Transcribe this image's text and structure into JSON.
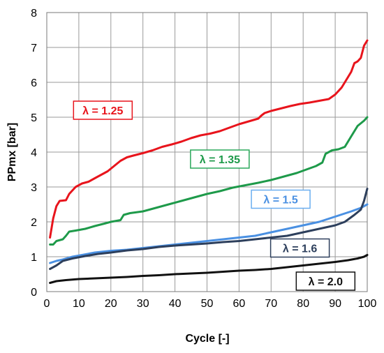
{
  "chart_data": {
    "type": "line",
    "title": "",
    "xlabel": "Cycle [-]",
    "ylabel": "PPmx [bar]",
    "xlim": [
      0,
      100
    ],
    "ylim": [
      0,
      8
    ],
    "x_ticks": [
      0,
      10,
      20,
      30,
      40,
      50,
      60,
      70,
      80,
      90,
      100
    ],
    "y_ticks": [
      0,
      1,
      2,
      3,
      4,
      5,
      6,
      7,
      8
    ],
    "grid": true,
    "legend": "inline boxed labels near each curve",
    "series": [
      {
        "name": "λ = 1.25",
        "color": "#e8141c",
        "label_border": "#e8141c",
        "points": [
          [
            1,
            1.55
          ],
          [
            2,
            2.1
          ],
          [
            3,
            2.45
          ],
          [
            4,
            2.6
          ],
          [
            6,
            2.62
          ],
          [
            7,
            2.8
          ],
          [
            9,
            3.0
          ],
          [
            10,
            3.05
          ],
          [
            11,
            3.1
          ],
          [
            13,
            3.15
          ],
          [
            15,
            3.25
          ],
          [
            17,
            3.35
          ],
          [
            19,
            3.45
          ],
          [
            21,
            3.6
          ],
          [
            23,
            3.75
          ],
          [
            25,
            3.85
          ],
          [
            27,
            3.9
          ],
          [
            30,
            3.97
          ],
          [
            33,
            4.05
          ],
          [
            36,
            4.15
          ],
          [
            39,
            4.22
          ],
          [
            42,
            4.3
          ],
          [
            45,
            4.4
          ],
          [
            48,
            4.48
          ],
          [
            51,
            4.53
          ],
          [
            54,
            4.6
          ],
          [
            57,
            4.7
          ],
          [
            60,
            4.8
          ],
          [
            63,
            4.88
          ],
          [
            66,
            4.96
          ],
          [
            67,
            5.05
          ],
          [
            68,
            5.12
          ],
          [
            70,
            5.18
          ],
          [
            73,
            5.25
          ],
          [
            76,
            5.32
          ],
          [
            79,
            5.38
          ],
          [
            82,
            5.42
          ],
          [
            85,
            5.47
          ],
          [
            88,
            5.52
          ],
          [
            90,
            5.65
          ],
          [
            92,
            5.85
          ],
          [
            93,
            6.0
          ],
          [
            95,
            6.3
          ],
          [
            96,
            6.55
          ],
          [
            97,
            6.6
          ],
          [
            98,
            6.7
          ],
          [
            99,
            7.05
          ],
          [
            100,
            7.2
          ]
        ]
      },
      {
        "name": "λ = 1.35",
        "color": "#1e9a4a",
        "label_border": "#2aa85a",
        "points": [
          [
            1,
            1.35
          ],
          [
            2,
            1.35
          ],
          [
            3,
            1.45
          ],
          [
            5,
            1.5
          ],
          [
            6,
            1.6
          ],
          [
            7,
            1.72
          ],
          [
            9,
            1.75
          ],
          [
            12,
            1.8
          ],
          [
            15,
            1.88
          ],
          [
            18,
            1.95
          ],
          [
            20,
            2.0
          ],
          [
            23,
            2.05
          ],
          [
            24,
            2.2
          ],
          [
            26,
            2.25
          ],
          [
            30,
            2.3
          ],
          [
            34,
            2.4
          ],
          [
            38,
            2.5
          ],
          [
            42,
            2.6
          ],
          [
            46,
            2.7
          ],
          [
            50,
            2.8
          ],
          [
            54,
            2.88
          ],
          [
            58,
            2.98
          ],
          [
            62,
            3.05
          ],
          [
            66,
            3.12
          ],
          [
            70,
            3.2
          ],
          [
            74,
            3.3
          ],
          [
            78,
            3.4
          ],
          [
            81,
            3.5
          ],
          [
            84,
            3.6
          ],
          [
            86,
            3.7
          ],
          [
            87,
            3.95
          ],
          [
            89,
            4.05
          ],
          [
            91,
            4.08
          ],
          [
            93,
            4.15
          ],
          [
            95,
            4.45
          ],
          [
            96,
            4.6
          ],
          [
            97,
            4.75
          ],
          [
            99,
            4.9
          ],
          [
            100,
            5.0
          ]
        ]
      },
      {
        "name": "λ = 1.5",
        "color": "#4a90e2",
        "label_border": "#6aaef0",
        "points": [
          [
            1,
            0.82
          ],
          [
            3,
            0.88
          ],
          [
            5,
            0.92
          ],
          [
            8,
            1.0
          ],
          [
            11,
            1.05
          ],
          [
            15,
            1.12
          ],
          [
            20,
            1.17
          ],
          [
            25,
            1.2
          ],
          [
            30,
            1.25
          ],
          [
            35,
            1.3
          ],
          [
            40,
            1.35
          ],
          [
            45,
            1.4
          ],
          [
            50,
            1.45
          ],
          [
            55,
            1.5
          ],
          [
            60,
            1.55
          ],
          [
            65,
            1.6
          ],
          [
            70,
            1.7
          ],
          [
            75,
            1.8
          ],
          [
            80,
            1.9
          ],
          [
            85,
            2.0
          ],
          [
            90,
            2.15
          ],
          [
            95,
            2.3
          ],
          [
            98,
            2.4
          ],
          [
            100,
            2.5
          ]
        ]
      },
      {
        "name": "λ = 1.6",
        "color": "#2d3f5c",
        "label_border": "#2d3f5c",
        "points": [
          [
            1,
            0.65
          ],
          [
            3,
            0.75
          ],
          [
            5,
            0.88
          ],
          [
            8,
            0.95
          ],
          [
            12,
            1.02
          ],
          [
            16,
            1.08
          ],
          [
            20,
            1.12
          ],
          [
            25,
            1.18
          ],
          [
            30,
            1.22
          ],
          [
            35,
            1.28
          ],
          [
            40,
            1.32
          ],
          [
            45,
            1.35
          ],
          [
            50,
            1.38
          ],
          [
            55,
            1.42
          ],
          [
            60,
            1.45
          ],
          [
            65,
            1.5
          ],
          [
            70,
            1.55
          ],
          [
            75,
            1.6
          ],
          [
            80,
            1.7
          ],
          [
            85,
            1.8
          ],
          [
            90,
            1.9
          ],
          [
            93,
            2.0
          ],
          [
            96,
            2.2
          ],
          [
            98,
            2.35
          ],
          [
            99,
            2.6
          ],
          [
            100,
            2.95
          ]
        ]
      },
      {
        "name": "λ = 2.0",
        "color": "#111111",
        "label_border": "#111111",
        "points": [
          [
            1,
            0.25
          ],
          [
            3,
            0.3
          ],
          [
            6,
            0.33
          ],
          [
            10,
            0.36
          ],
          [
            15,
            0.38
          ],
          [
            20,
            0.4
          ],
          [
            25,
            0.42
          ],
          [
            30,
            0.45
          ],
          [
            35,
            0.47
          ],
          [
            40,
            0.5
          ],
          [
            45,
            0.52
          ],
          [
            50,
            0.54
          ],
          [
            55,
            0.57
          ],
          [
            60,
            0.6
          ],
          [
            65,
            0.62
          ],
          [
            70,
            0.65
          ],
          [
            75,
            0.7
          ],
          [
            80,
            0.75
          ],
          [
            85,
            0.8
          ],
          [
            90,
            0.85
          ],
          [
            94,
            0.9
          ],
          [
            97,
            0.95
          ],
          [
            99,
            1.0
          ],
          [
            100,
            1.05
          ]
        ]
      }
    ],
    "labels": [
      {
        "series": 0,
        "text": "λ = 1.25",
        "at_x": 17.5,
        "at_y": 5.2
      },
      {
        "series": 1,
        "text": "λ = 1.35",
        "at_x": 54,
        "at_y": 3.8
      },
      {
        "series": 2,
        "text": "λ = 1.5",
        "at_x": 73,
        "at_y": 2.65
      },
      {
        "series": 3,
        "text": "λ = 1.6",
        "at_x": 79,
        "at_y": 1.25
      },
      {
        "series": 4,
        "text": "λ = 2.0",
        "at_x": 87,
        "at_y": 0.3
      }
    ]
  }
}
